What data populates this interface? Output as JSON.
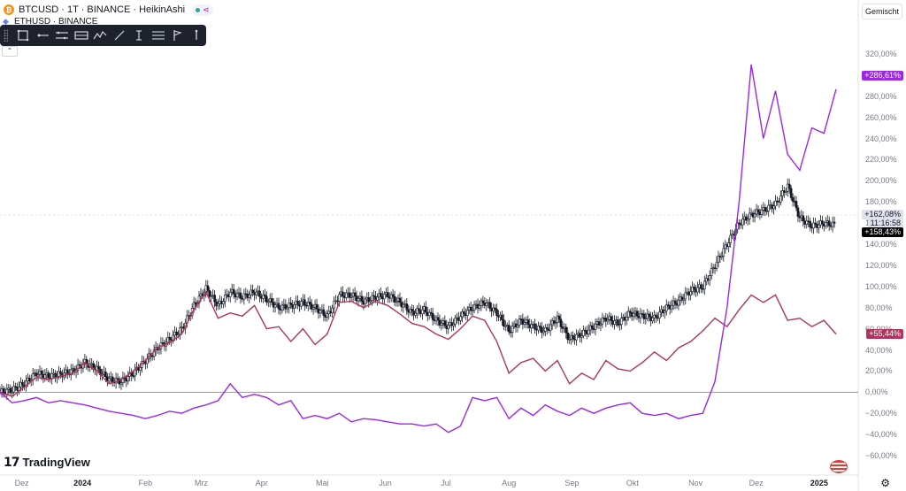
{
  "header": {
    "symbol_line": "BTCUSD · 1T · BINANCE · HeikinAshi",
    "compare_line": "ETHUSD · BINANCE",
    "scale_mode": "Gemischt"
  },
  "branding": {
    "logo_text": "TradingView"
  },
  "colors": {
    "btc": "#131722",
    "eth": "#b0345e",
    "third": "#9c27e6",
    "zero_line": "#9598a1"
  },
  "price_tags": [
    {
      "text": "+286,61%",
      "color": "#9c27e6"
    },
    {
      "text": "+162,08%",
      "color": "#e0e3eb"
    },
    {
      "text": "11:16:58",
      "color": "#e0e3eb"
    },
    {
      "text": "+158,43%",
      "color": "#000000"
    },
    {
      "text": "+55,44%",
      "color": "#b0345e"
    }
  ],
  "chart_data": {
    "type": "line",
    "y_unit": "%",
    "ylim": [
      -65,
      335
    ],
    "y_ticks": [
      "320,00%",
      "300,00%",
      "280,00%",
      "260,00%",
      "240,00%",
      "220,00%",
      "200,00%",
      "180,00%",
      "160,00%",
      "140,00%",
      "120,00%",
      "100,00%",
      "80,00%",
      "60,00%",
      "40,00%",
      "20,00%",
      "0,00%",
      "−20,00%",
      "−40,00%",
      "−60,00%"
    ],
    "x_ticks": [
      {
        "label": "Dez",
        "x": 0.9
      },
      {
        "label": "2024",
        "x": 3.4
      },
      {
        "label": "Feb",
        "x": 6
      },
      {
        "label": "Mrz",
        "x": 8.3
      },
      {
        "label": "Apr",
        "x": 10.8
      },
      {
        "label": "Mai",
        "x": 13.3
      },
      {
        "label": "Jun",
        "x": 15.9
      },
      {
        "label": "Jul",
        "x": 18.4
      },
      {
        "label": "Aug",
        "x": 21
      },
      {
        "label": "Sep",
        "x": 23.6
      },
      {
        "label": "Okt",
        "x": 26.1
      },
      {
        "label": "Nov",
        "x": 28.7
      },
      {
        "label": "Dez",
        "x": 31.2
      },
      {
        "label": "2025",
        "x": 33.8
      }
    ],
    "series": [
      {
        "key": "btc",
        "style": "candles",
        "x": [
          0,
          0.5,
          1,
          1.5,
          2,
          2.5,
          3,
          3.5,
          4,
          4.5,
          5,
          5.5,
          6,
          6.5,
          7,
          7.5,
          8,
          8.5,
          9,
          9.5,
          10,
          10.5,
          11,
          11.5,
          12,
          12.5,
          13,
          13.5,
          14,
          14.5,
          15,
          15.5,
          16,
          16.5,
          17,
          17.5,
          18,
          18.5,
          19,
          19.5,
          20,
          20.5,
          21,
          21.5,
          22,
          22.5,
          23,
          23.5,
          24,
          24.5,
          25,
          25.5,
          26,
          26.5,
          27,
          27.5,
          28,
          28.5,
          29,
          29.5,
          30,
          30.5,
          31,
          31.5,
          32,
          32.5,
          33,
          33.5,
          34,
          34.5
        ],
        "values": [
          0,
          2,
          8,
          18,
          15,
          17,
          20,
          28,
          22,
          12,
          10,
          18,
          30,
          42,
          50,
          60,
          82,
          98,
          82,
          95,
          90,
          95,
          88,
          80,
          82,
          85,
          80,
          72,
          92,
          92,
          86,
          90,
          92,
          85,
          75,
          78,
          68,
          62,
          72,
          80,
          85,
          75,
          58,
          68,
          62,
          58,
          70,
          50,
          55,
          62,
          70,
          65,
          75,
          72,
          70,
          80,
          86,
          96,
          100,
          120,
          140,
          160,
          168,
          172,
          178,
          195,
          165,
          157,
          160,
          158
        ]
      },
      {
        "key": "eth",
        "style": "line",
        "x": [
          0,
          0.5,
          1,
          1.5,
          2,
          2.5,
          3,
          3.5,
          4,
          4.5,
          5,
          5.5,
          6,
          6.5,
          7,
          7.5,
          8,
          8.5,
          9,
          9.5,
          10,
          10.5,
          11,
          11.5,
          12,
          12.5,
          13,
          13.5,
          14,
          14.5,
          15,
          15.5,
          16,
          16.5,
          17,
          17.5,
          18,
          18.5,
          19,
          19.5,
          20,
          20.5,
          21,
          21.5,
          22,
          22.5,
          23,
          23.5,
          24,
          24.5,
          25,
          25.5,
          26,
          26.5,
          27,
          27.5,
          28,
          28.5,
          29,
          29.5,
          30,
          30.5,
          31,
          31.5,
          32,
          32.5,
          33,
          33.5,
          34,
          34.5
        ],
        "values": [
          0,
          -4,
          5,
          14,
          12,
          15,
          18,
          28,
          20,
          8,
          12,
          20,
          30,
          42,
          47,
          55,
          78,
          95,
          70,
          75,
          72,
          82,
          60,
          62,
          48,
          60,
          45,
          55,
          85,
          86,
          80,
          86,
          82,
          74,
          65,
          62,
          55,
          50,
          60,
          72,
          68,
          48,
          18,
          28,
          32,
          20,
          30,
          8,
          18,
          12,
          30,
          22,
          20,
          28,
          38,
          30,
          42,
          48,
          58,
          70,
          62,
          78,
          92,
          85,
          92,
          68,
          70,
          62,
          68,
          55
        ]
      },
      {
        "key": "third",
        "style": "line",
        "x": [
          0,
          0.5,
          1,
          1.5,
          2,
          2.5,
          3,
          3.5,
          4,
          4.5,
          5,
          5.5,
          6,
          6.5,
          7,
          7.5,
          8,
          8.5,
          9,
          9.5,
          10,
          10.5,
          11,
          11.5,
          12,
          12.5,
          13,
          13.5,
          14,
          14.5,
          15,
          15.5,
          16,
          16.5,
          17,
          17.5,
          18,
          18.5,
          19,
          19.5,
          20,
          20.5,
          21,
          21.5,
          22,
          22.5,
          23,
          23.5,
          24,
          24.5,
          25,
          25.5,
          26,
          26.5,
          27,
          27.5,
          28,
          28.5,
          29,
          29.5,
          30,
          30.5,
          31,
          31.5,
          32,
          32.5,
          33,
          33.5,
          34,
          34.5
        ],
        "values": [
          0,
          -10,
          -8,
          -5,
          -10,
          -8,
          -10,
          -12,
          -15,
          -18,
          -20,
          -22,
          -25,
          -22,
          -18,
          -20,
          -15,
          -12,
          -8,
          8,
          -5,
          -2,
          -5,
          -12,
          -8,
          -25,
          -22,
          -25,
          -20,
          -28,
          -25,
          -26,
          -28,
          -30,
          -30,
          -32,
          -30,
          -38,
          -32,
          -5,
          -8,
          -5,
          -25,
          -15,
          -22,
          -12,
          -18,
          -22,
          -15,
          -20,
          -15,
          -12,
          -10,
          -20,
          -22,
          -20,
          -25,
          -22,
          -20,
          10,
          80,
          180,
          310,
          240,
          285,
          225,
          210,
          250,
          245,
          286.6
        ]
      }
    ]
  }
}
